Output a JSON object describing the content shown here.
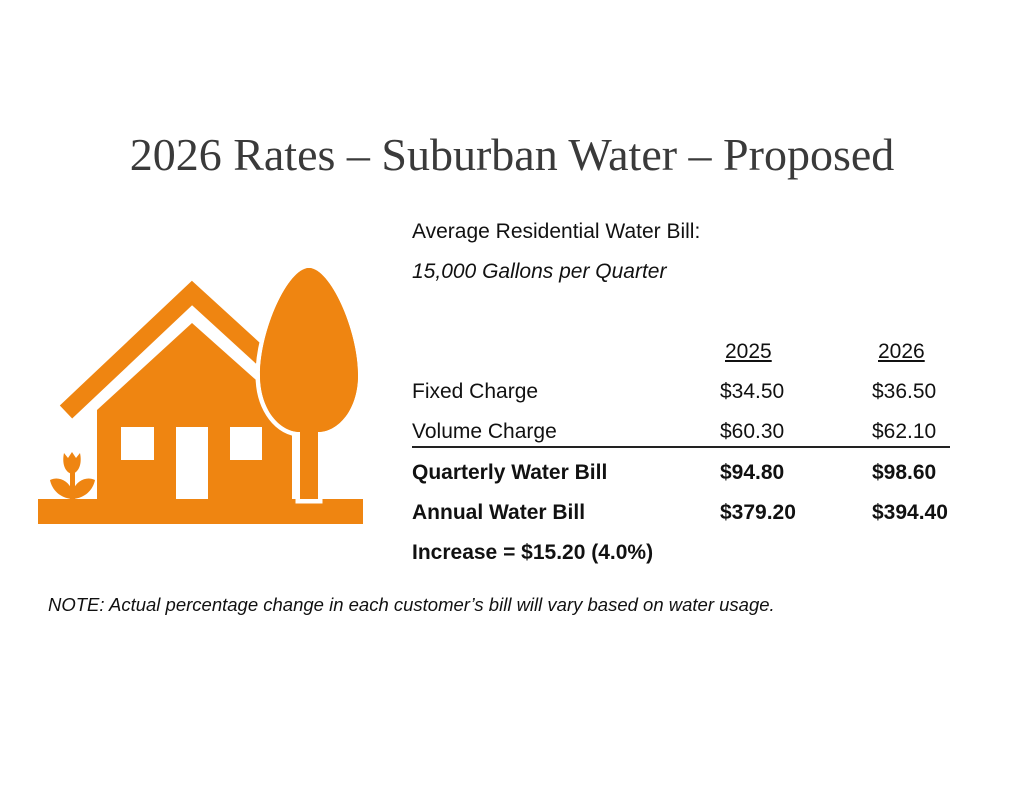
{
  "title": "2026 Rates – Suburban Water – Proposed",
  "subtitle": "Average Residential Water Bill:",
  "usage": "15,000 Gallons per Quarter",
  "columns": [
    "2025",
    "2026"
  ],
  "rows": [
    {
      "label": "Fixed Charge",
      "v2025": "$34.50",
      "v2026": "$36.50"
    },
    {
      "label": "Volume Charge",
      "v2025": "$60.30",
      "v2026": "$62.10"
    },
    {
      "label": "Quarterly Water Bill",
      "v2025": "$94.80",
      "v2026": "$98.60"
    },
    {
      "label": "Annual Water Bill",
      "v2025": "$379.20",
      "v2026": "$394.40"
    }
  ],
  "increase": "Increase = $15.20 (4.0%)",
  "note": "NOTE: Actual percentage change in each customer’s bill will vary based on water usage.",
  "icon": "house-with-tree-icon",
  "accent_color": "#EF8511"
}
